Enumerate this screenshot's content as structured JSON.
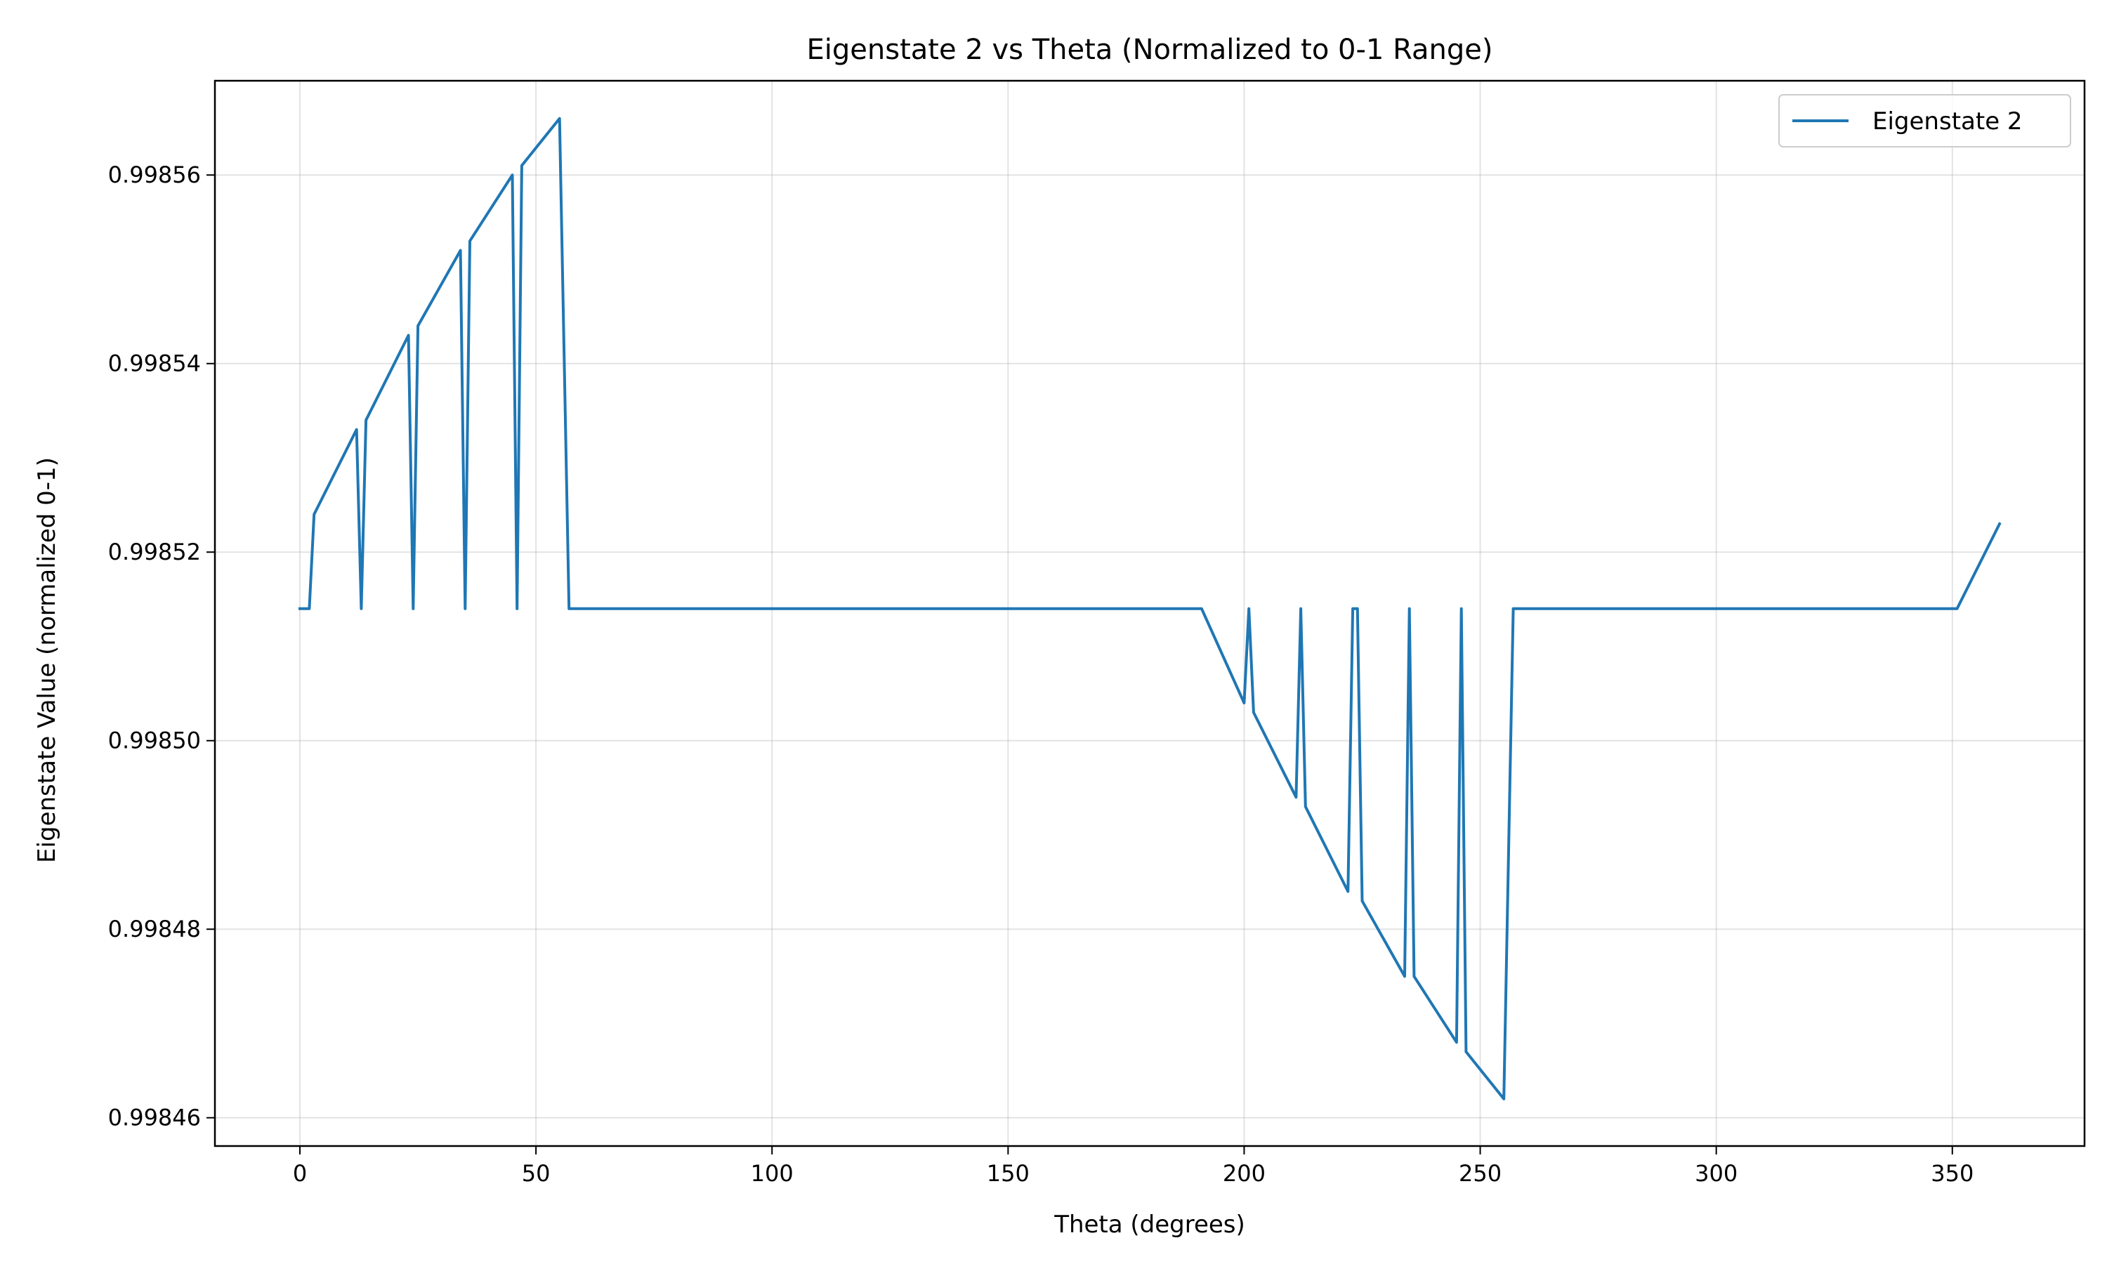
{
  "chart_data": {
    "type": "line",
    "title": "Eigenstate 2 vs Theta (Normalized to 0-1 Range)",
    "xlabel": "Theta (degrees)",
    "ylabel": "Eigenstate Value (normalized 0-1)",
    "xlim": [
      -18,
      378
    ],
    "ylim": [
      0.998457,
      0.99857
    ],
    "xticks": [
      0,
      50,
      100,
      150,
      200,
      250,
      300,
      350
    ],
    "xtick_labels": [
      "0",
      "50",
      "100",
      "150",
      "200",
      "250",
      "300",
      "350"
    ],
    "yticks": [
      0.99846,
      0.99848,
      0.9985,
      0.99852,
      0.99854,
      0.99856
    ],
    "ytick_labels": [
      "0.99846",
      "0.99848",
      "0.99850",
      "0.99852",
      "0.99854",
      "0.99856"
    ],
    "grid": true,
    "legend_position": "top-right",
    "series": [
      {
        "name": "Eigenstate 2",
        "color": "#1f77b4",
        "x": [
          0,
          2,
          3,
          12,
          13,
          14,
          23,
          24,
          25,
          34,
          35,
          36,
          45,
          46,
          47,
          55,
          57,
          58,
          68,
          69,
          78,
          79,
          90,
          100,
          112,
          130,
          146,
          147,
          157,
          158,
          167,
          168,
          178,
          179,
          188,
          190,
          191,
          200,
          201,
          202,
          211,
          212,
          213,
          222,
          223,
          224,
          225,
          234,
          235,
          236,
          245,
          246,
          247,
          255,
          257,
          258,
          259,
          267,
          268,
          269,
          279,
          280,
          289,
          290,
          300,
          310,
          320,
          336,
          337,
          338,
          349,
          350,
          351,
          360
        ],
        "y": [
          0.998514,
          0.998514,
          0.998524,
          0.998533,
          0.998514,
          0.998534,
          0.998543,
          0.998514,
          0.998544,
          0.998552,
          0.998514,
          0.998553,
          0.99856,
          0.998514,
          0.998561,
          0.998566,
          0.998514,
          0.998514,
          0.998514,
          0.998514,
          0.998514,
          0.998514,
          0.998514,
          0.998514,
          0.998514,
          0.998514,
          0.998514,
          0.998514,
          0.998514,
          0.998514,
          0.998514,
          0.998514,
          0.998514,
          0.998514,
          0.998514,
          0.998514,
          0.998514,
          0.998504,
          0.998514,
          0.998503,
          0.998494,
          0.998514,
          0.998493,
          0.998484,
          0.998514,
          0.998514,
          0.998483,
          0.998475,
          0.998514,
          0.998475,
          0.998468,
          0.998514,
          0.998467,
          0.998462,
          0.998514,
          0.998514,
          0.998514,
          0.998514,
          0.998514,
          0.998514,
          0.998514,
          0.998514,
          0.998514,
          0.998514,
          0.998514,
          0.998514,
          0.998514,
          0.998514,
          0.998514,
          0.998514,
          0.998514,
          0.998514,
          0.998514,
          0.998523
        ]
      }
    ]
  }
}
